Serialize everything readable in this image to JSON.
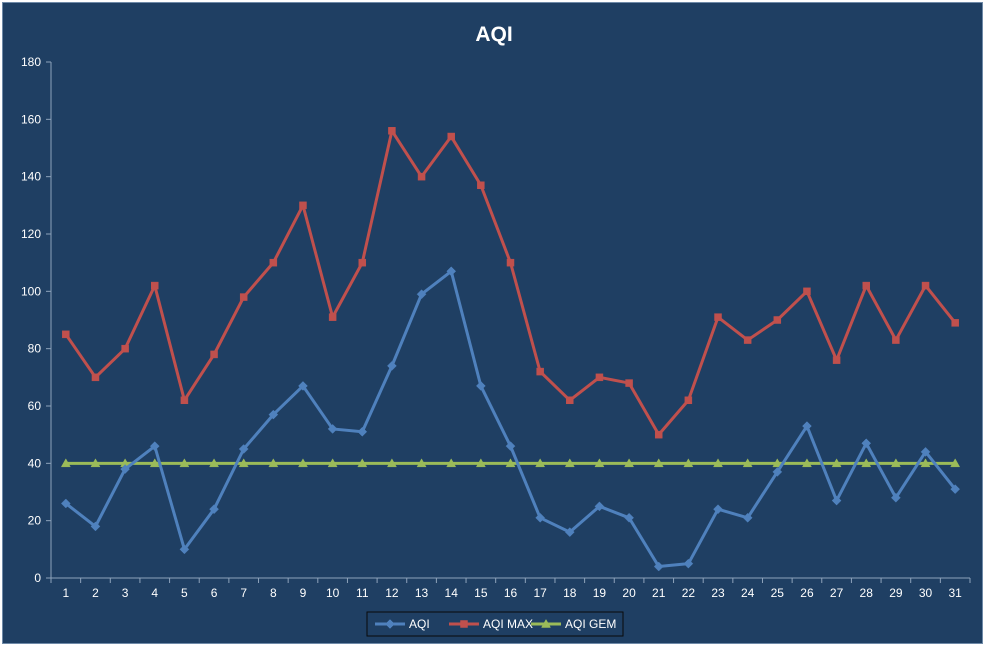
{
  "chart_data": {
    "type": "line",
    "title": "AQI",
    "xlabel": "",
    "ylabel": "",
    "ylim": [
      0,
      180
    ],
    "yticks": [
      0,
      20,
      40,
      60,
      80,
      100,
      120,
      140,
      160,
      180
    ],
    "categories": [
      "1",
      "2",
      "3",
      "4",
      "5",
      "6",
      "7",
      "8",
      "9",
      "10",
      "11",
      "12",
      "13",
      "14",
      "15",
      "16",
      "17",
      "18",
      "19",
      "20",
      "21",
      "22",
      "23",
      "24",
      "25",
      "26",
      "27",
      "28",
      "29",
      "30",
      "31"
    ],
    "grid": false,
    "legend": "bottom",
    "series": [
      {
        "name": "AQI",
        "color": "#4f81bd",
        "marker": "diamond",
        "values": [
          26,
          18,
          38,
          46,
          10,
          24,
          45,
          57,
          67,
          52,
          51,
          74,
          99,
          107,
          67,
          46,
          21,
          16,
          25,
          21,
          4,
          5,
          24,
          21,
          37,
          53,
          27,
          47,
          28,
          44,
          31
        ]
      },
      {
        "name": "AQI MAX",
        "color": "#c0504d",
        "marker": "square",
        "values": [
          85,
          70,
          80,
          102,
          62,
          78,
          98,
          110,
          130,
          91,
          110,
          156,
          140,
          154,
          137,
          110,
          72,
          62,
          70,
          68,
          50,
          62,
          91,
          83,
          90,
          100,
          76,
          102,
          83,
          102,
          89
        ]
      },
      {
        "name": "AQI GEM",
        "color": "#9bbb59",
        "marker": "triangle",
        "values": [
          40,
          40,
          40,
          40,
          40,
          40,
          40,
          40,
          40,
          40,
          40,
          40,
          40,
          40,
          40,
          40,
          40,
          40,
          40,
          40,
          40,
          40,
          40,
          40,
          40,
          40,
          40,
          40,
          40,
          40,
          40
        ]
      }
    ]
  }
}
